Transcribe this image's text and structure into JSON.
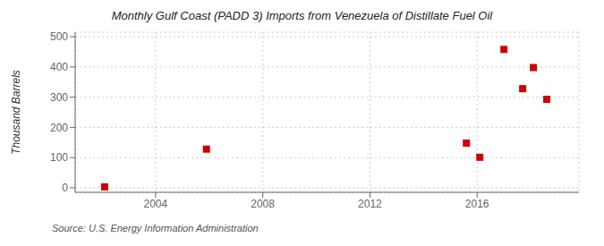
{
  "chart_data": {
    "type": "scatter",
    "title": "Monthly Gulf Coast (PADD 3) Imports from Venezuela of Distillate Fuel Oil",
    "ylabel": "Thousand Barrels",
    "annotations": [
      "Source: U.S. Energy Information Administration"
    ],
    "x": [
      2002.1,
      2005.9,
      2015.6,
      2016.1,
      2017.0,
      2017.7,
      2018.1,
      2018.6
    ],
    "values": [
      3,
      128,
      148,
      101,
      458,
      328,
      398,
      293
    ],
    "color": "#cc0000",
    "marker": "square",
    "xlim": [
      2001.0,
      2019.8
    ],
    "ylim": [
      -15,
      515
    ],
    "xticks": [
      2004,
      2008,
      2012,
      2016
    ],
    "yticks": [
      0,
      100,
      200,
      300,
      400,
      500
    ],
    "grid": true
  }
}
